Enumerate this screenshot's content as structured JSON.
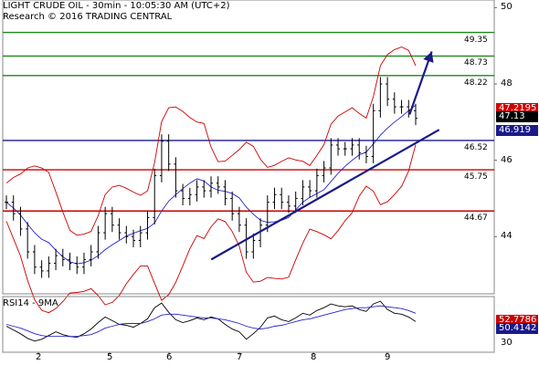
{
  "header": {
    "title": "LIGHT CRUDE OIL - 30min - 10:05:30 AM (UTC+2)",
    "copyright": "Research © 2016 TRADING CENTRAL"
  },
  "rsi_panel": {
    "title": "RSI14 - 9MA"
  },
  "colors": {
    "support_resistance_green": "#1a8a1a",
    "pivot_blue": "#1a1a8a",
    "support_red": "#cc0000",
    "bollinger": "#cc0000",
    "moving_average": "#2222cc",
    "price": "#000000"
  },
  "chart_data": [
    {
      "type": "line",
      "title": "LIGHT CRUDE OIL - 30min",
      "x_ticks": [
        "2",
        "5",
        "6",
        "7",
        "8",
        "9"
      ],
      "y_ticks": [
        44,
        46,
        48,
        50
      ],
      "ylim": [
        42.5,
        50.2
      ],
      "horizontal_levels": [
        {
          "value": 49.35,
          "label": "49.35",
          "color": "green"
        },
        {
          "value": 48.73,
          "label": "48.73",
          "color": "green"
        },
        {
          "value": 48.22,
          "label": "48.22",
          "color": "green"
        },
        {
          "value": 46.52,
          "label": "46.52",
          "color": "blue"
        },
        {
          "value": 45.75,
          "label": "45.75",
          "color": "red"
        },
        {
          "value": 44.67,
          "label": "44.67",
          "color": "red"
        }
      ],
      "price_tags": [
        {
          "label": "47.2195",
          "value": 47.2195,
          "color": "red"
        },
        {
          "label": "47.13",
          "value": 47.13,
          "color": "black"
        },
        {
          "label": "46.919",
          "value": 46.919,
          "color": "blue"
        }
      ],
      "trendline": {
        "start": {
          "x": "6.6",
          "y": 43.4
        },
        "end": {
          "x": "9.7",
          "y": 46.8
        }
      },
      "projection_arrow": {
        "start": {
          "x": "9.3",
          "y": 47.2
        },
        "end": {
          "x": "9.6",
          "y": 48.85
        }
      },
      "series": [
        {
          "values": [
            44.9,
            44.6,
            44.2,
            43.6,
            43.2,
            43.1,
            43.3,
            43.5,
            43.4,
            43.3,
            43.2,
            43.4,
            43.6,
            44.1,
            44.6,
            44.3,
            44.1,
            44.0,
            43.9,
            44.1,
            44.5,
            45.6,
            46.5,
            45.9,
            45.2,
            45.0,
            45.1,
            45.3,
            45.2,
            45.4,
            45.3,
            45.0,
            44.6,
            44.3,
            43.6,
            43.9,
            44.3,
            44.9,
            45.1,
            44.9,
            44.8,
            45.0,
            45.3,
            45.2,
            45.6,
            45.8,
            46.4,
            46.3,
            46.3,
            46.4,
            46.2,
            46.1,
            47.3,
            48.0,
            47.6,
            47.4,
            47.4,
            47.3,
            47.1
          ]
        }
      ]
    },
    {
      "type": "line",
      "title": "RSI14 - 9MA",
      "y_ticks": [
        30
      ],
      "price_tags": [
        {
          "label": "52.7786",
          "value": 52.7786,
          "color": "red"
        },
        {
          "label": "50.4142",
          "value": 50.4142,
          "color": "blue"
        }
      ],
      "series": [
        {
          "values": [
            48,
            44,
            40,
            35,
            32,
            34,
            38,
            42,
            39,
            37,
            36,
            40,
            45,
            52,
            58,
            54,
            50,
            49,
            47,
            51,
            56,
            68,
            73,
            63,
            55,
            52,
            54,
            57,
            55,
            58,
            56,
            50,
            45,
            42,
            34,
            40,
            47,
            57,
            59,
            55,
            53,
            57,
            62,
            60,
            65,
            68,
            72,
            70,
            69,
            70,
            66,
            64,
            72,
            75,
            66,
            62,
            61,
            58,
            53
          ]
        },
        {
          "values": [
            50,
            48,
            46,
            43,
            40,
            38,
            37,
            37,
            37,
            37,
            37,
            38,
            39,
            42,
            46,
            48,
            50,
            51,
            51,
            51,
            53,
            56,
            60,
            61,
            61,
            60,
            59,
            58,
            57,
            57,
            56,
            55,
            53,
            51,
            48,
            46,
            45,
            46,
            48,
            49,
            51,
            53,
            55,
            56,
            58,
            60,
            62,
            64,
            66,
            67,
            68,
            68,
            69,
            70,
            69,
            68,
            67,
            65,
            62
          ]
        }
      ]
    }
  ]
}
